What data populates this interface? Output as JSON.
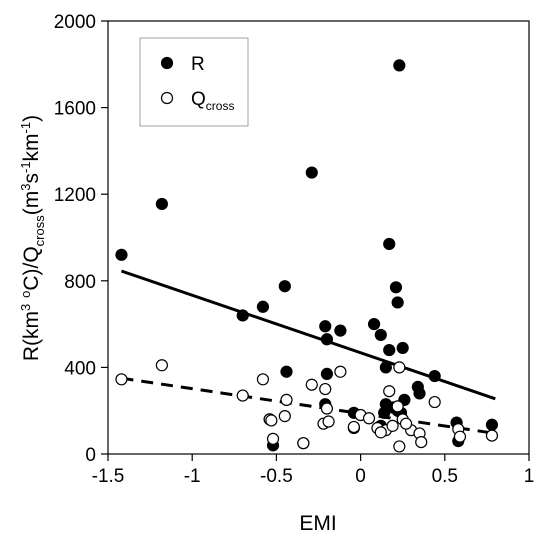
{
  "chart_data": {
    "type": "scatter",
    "xlabel": "EMI",
    "ylabel_parts": {
      "a": "R(km",
      "b": "3",
      "c": " ",
      "d": "o",
      "e": "C)/Q",
      "f": "cross",
      "g": "(m",
      "h": "3",
      "i": "s",
      "j": "-1",
      "k": "km",
      "l": "-1",
      "m": ")"
    },
    "xlim": [
      -1.5,
      1
    ],
    "ylim": [
      0,
      2000
    ],
    "x_ticks": [
      -1.5,
      -1,
      -0.5,
      0,
      0.5,
      1
    ],
    "x_tick_labels": [
      "-1.5",
      "-1",
      "-0.5",
      "0",
      "0.5",
      "1"
    ],
    "y_ticks": [
      0,
      400,
      800,
      1200,
      1600,
      2000
    ],
    "y_tick_labels": [
      "0",
      "400",
      "800",
      "1200",
      "1600",
      "2000"
    ],
    "legend_position": "top-left",
    "series": [
      {
        "name": "R",
        "marker": "filled-circle",
        "color": "#000000",
        "x": [
          -1.42,
          -1.18,
          -0.29,
          0.23,
          -0.7,
          -0.45,
          -0.58,
          -0.21,
          -0.12,
          -0.2,
          0.08,
          0.12,
          0.17,
          0.21,
          0.22,
          0.15,
          0.25,
          0.17,
          -0.44,
          -0.2,
          0.44,
          -0.21,
          0.34,
          0.35,
          0.26,
          0.19,
          0.24,
          -0.04,
          0.14,
          0.22,
          -0.54,
          -0.52,
          -0.34,
          0.57,
          0.78,
          0.58,
          -0.04,
          0.12,
          0.15
        ],
        "y": [
          920,
          1155,
          1300,
          1795,
          640,
          775,
          680,
          590,
          570,
          530,
          600,
          550,
          970,
          770,
          700,
          400,
          490,
          480,
          380,
          370,
          360,
          230,
          310,
          280,
          250,
          215,
          190,
          190,
          190,
          200,
          160,
          40,
          50,
          145,
          135,
          60,
          120,
          130,
          230
        ]
      },
      {
        "name": "Q",
        "name_subscript": "cross",
        "marker": "open-circle",
        "color": "#000000",
        "x": [
          -1.42,
          -1.18,
          -0.7,
          -0.58,
          -0.29,
          -0.21,
          -0.12,
          -0.44,
          -0.2,
          0.17,
          0.44,
          0.23,
          -0.54,
          -0.45,
          -0.52,
          -0.34,
          -0.22,
          -0.19,
          0.0,
          0.05,
          0.1,
          0.15,
          0.19,
          0.22,
          0.25,
          0.3,
          0.35,
          0.58,
          0.59,
          0.78,
          0.23,
          0.36,
          0.12,
          -0.04,
          -0.53,
          0.27
        ],
        "y": [
          345,
          410,
          270,
          345,
          320,
          300,
          380,
          250,
          210,
          290,
          240,
          400,
          160,
          175,
          70,
          50,
          140,
          150,
          180,
          165,
          120,
          110,
          130,
          220,
          160,
          110,
          95,
          115,
          80,
          85,
          35,
          55,
          100,
          125,
          155,
          140
        ]
      }
    ],
    "trend_lines": [
      {
        "series": "R",
        "style": "solid",
        "x": [
          -1.42,
          0.8
        ],
        "y": [
          845,
          255
        ]
      },
      {
        "series": "Q",
        "style": "dashed",
        "x": [
          -1.42,
          0.8
        ],
        "y": [
          350,
          95
        ]
      }
    ]
  }
}
